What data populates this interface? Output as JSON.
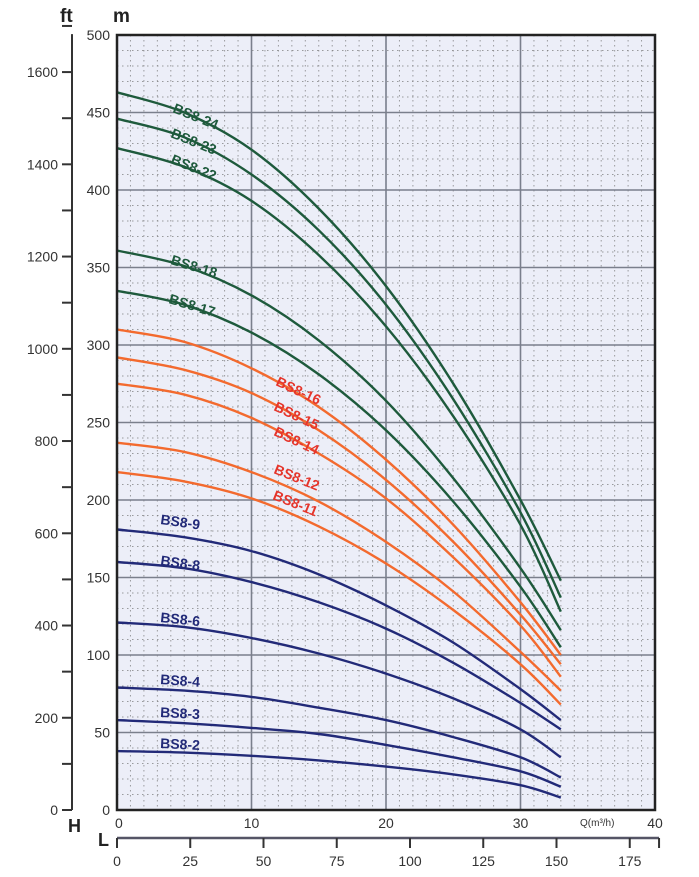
{
  "chart_data": {
    "type": "line",
    "title": "",
    "xlabel": "Q(m³/h)",
    "ylabel": "m",
    "ylabel_ft": "ft",
    "h_axis_label": "H",
    "l_axis_label": "L",
    "xlim": [
      0,
      40
    ],
    "ylim": [
      0,
      500
    ],
    "ft_lim": [
      0,
      1640
    ],
    "l_lim": [
      0,
      185
    ],
    "x_ticks": [
      "0",
      "10",
      "20",
      "30",
      "40"
    ],
    "y_ticks": [
      "0",
      "50",
      "100",
      "150",
      "200",
      "250",
      "300",
      "350",
      "400",
      "450",
      "500"
    ],
    "ft_ticks": [
      "0",
      "200",
      "400",
      "600",
      "800",
      "1000",
      "1200",
      "1400",
      "1600"
    ],
    "l_ticks": [
      "0",
      "25",
      "50",
      "75",
      "100",
      "125",
      "150",
      "175"
    ],
    "grid": true,
    "colors": {
      "green": "#1e5a3c",
      "orange": "#f36a2e",
      "blue": "#222a78",
      "red_label": "#e5352b",
      "background": "#eceef8"
    },
    "x": [
      0,
      5,
      10,
      15,
      20,
      25,
      30,
      33
    ],
    "series": [
      {
        "name": "BS8-24",
        "group": "green",
        "values": [
          463,
          450,
          426,
          388,
          338,
          275,
          200,
          148
        ]
      },
      {
        "name": "BS8-23",
        "group": "green",
        "values": [
          446,
          434,
          410,
          374,
          326,
          265,
          192,
          137
        ]
      },
      {
        "name": "BS8-22",
        "group": "green",
        "values": [
          427,
          415,
          393,
          358,
          312,
          254,
          184,
          128
        ]
      },
      {
        "name": "BS8-18",
        "group": "green",
        "values": [
          361,
          351,
          332,
          303,
          264,
          214,
          156,
          116
        ]
      },
      {
        "name": "BS8-17",
        "group": "green",
        "values": [
          335,
          326,
          308,
          281,
          245,
          199,
          144,
          105
        ]
      },
      {
        "name": "BS8-16",
        "group": "orange",
        "values": [
          310,
          302,
          285,
          260,
          226,
          184,
          134,
          100
        ]
      },
      {
        "name": "BS8-15",
        "group": "orange",
        "values": [
          292,
          284,
          269,
          245,
          213,
          173,
          126,
          94
        ]
      },
      {
        "name": "BS8-14",
        "group": "orange",
        "values": [
          275,
          268,
          253,
          230,
          201,
          163,
          119,
          86
        ]
      },
      {
        "name": "BS8-12",
        "group": "orange",
        "values": [
          237,
          231,
          218,
          199,
          173,
          141,
          102,
          77
        ]
      },
      {
        "name": "BS8-11",
        "group": "orange",
        "values": [
          218,
          212,
          201,
          183,
          159,
          129,
          94,
          68
        ]
      },
      {
        "name": "BS8-9",
        "group": "blue",
        "values": [
          181,
          176,
          167,
          152,
          132,
          108,
          78,
          58
        ]
      },
      {
        "name": "BS8-8",
        "group": "blue",
        "values": [
          160,
          156,
          147,
          134,
          117,
          95,
          69,
          52
        ]
      },
      {
        "name": "BS8-6",
        "group": "blue",
        "values": [
          121,
          118,
          111,
          101,
          88,
          72,
          52,
          34
        ]
      },
      {
        "name": "BS8-4",
        "group": "blue",
        "values": [
          79,
          77,
          73,
          66,
          58,
          47,
          34,
          21
        ]
      },
      {
        "name": "BS8-3",
        "group": "blue",
        "values": [
          58,
          56,
          53,
          49,
          42,
          34,
          25,
          15
        ]
      },
      {
        "name": "BS8-2",
        "group": "blue",
        "values": [
          38,
          37,
          35,
          32,
          28,
          23,
          16,
          8
        ]
      }
    ]
  }
}
